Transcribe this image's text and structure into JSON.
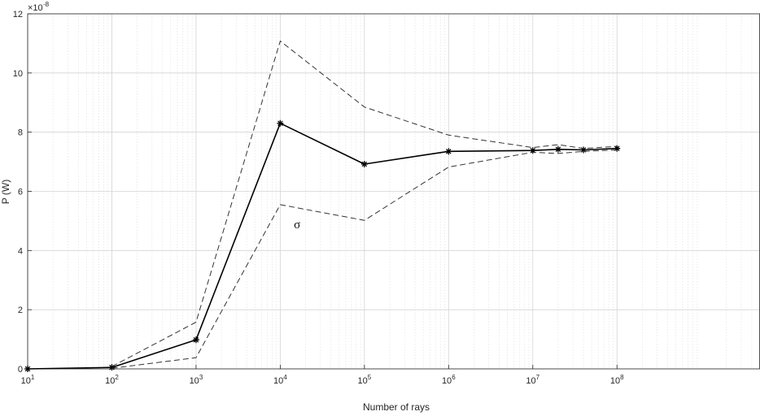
{
  "chart_data": {
    "type": "line",
    "title": "",
    "xlabel": "Number of rays",
    "ylabel": "P (W)",
    "y_exponent_label": "×10",
    "y_exponent_power": "-8",
    "x_scale": "log",
    "x_range": [
      10,
      5000000000
    ],
    "ylim": [
      0,
      12
    ],
    "grid": true,
    "minor_grid": true,
    "y_ticks": [
      0,
      2,
      4,
      6,
      8,
      10,
      12
    ],
    "y_tick_labels": [
      "0",
      "2",
      "4",
      "6",
      "8",
      "10",
      "12"
    ],
    "x_ticks": [
      10,
      100,
      1000,
      10000,
      100000,
      1000000,
      10000000,
      100000000
    ],
    "x_tick_labels": [
      {
        "base": "10",
        "exp": "1"
      },
      {
        "base": "10",
        "exp": "2"
      },
      {
        "base": "10",
        "exp": "3"
      },
      {
        "base": "10",
        "exp": "4"
      },
      {
        "base": "10",
        "exp": "5"
      },
      {
        "base": "10",
        "exp": "6"
      },
      {
        "base": "10",
        "exp": "7"
      },
      {
        "base": "10",
        "exp": "8"
      }
    ],
    "annotation": "σ",
    "annotation_at": [
      13000,
      5.05
    ],
    "series": [
      {
        "style": "solid-star",
        "color": "#000000",
        "x": [
          10,
          100,
          1000,
          10000,
          100000,
          1000000,
          10000000,
          20000000,
          40000000,
          100000000
        ],
        "y": [
          0.0,
          0.05,
          0.98,
          8.3,
          6.92,
          7.35,
          7.38,
          7.42,
          7.4,
          7.45
        ]
      },
      {
        "style": "dashed",
        "color": "#333333",
        "x": [
          100,
          1000,
          10000,
          100000,
          1000000,
          10000000,
          20000000,
          40000000,
          100000000
        ],
        "y": [
          0.08,
          1.58,
          11.08,
          8.85,
          7.9,
          7.48,
          7.58,
          7.45,
          7.52
        ]
      },
      {
        "style": "dashed",
        "color": "#333333",
        "x": [
          100,
          1000,
          10000,
          100000,
          1000000,
          10000000,
          20000000,
          40000000,
          100000000
        ],
        "y": [
          0.02,
          0.38,
          5.55,
          5.02,
          6.82,
          7.32,
          7.28,
          7.35,
          7.4
        ]
      }
    ]
  }
}
